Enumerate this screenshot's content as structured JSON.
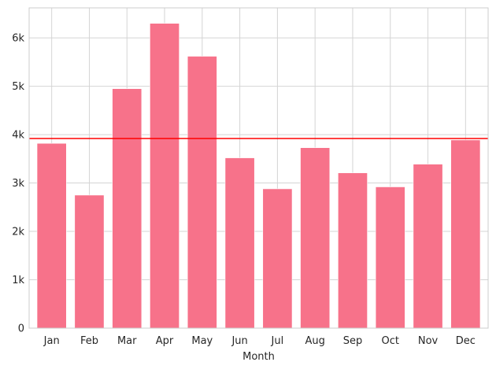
{
  "chart_data": {
    "type": "bar",
    "title": "",
    "xlabel": "Month",
    "ylabel": "",
    "categories": [
      "Jan",
      "Feb",
      "Mar",
      "Apr",
      "May",
      "Jun",
      "Jul",
      "Aug",
      "Sep",
      "Oct",
      "Nov",
      "Dec"
    ],
    "values": [
      3820,
      2750,
      4950,
      6300,
      5620,
      3520,
      2880,
      3730,
      3210,
      2920,
      3390,
      3890
    ],
    "ylim": [
      0,
      6620
    ],
    "yticks": [
      0,
      1000,
      2000,
      3000,
      4000,
      5000,
      6000
    ],
    "ytick_labels": [
      "0",
      "1k",
      "2k",
      "3k",
      "4k",
      "5k",
      "6k"
    ],
    "reference_line": {
      "value": 3920,
      "color": "#ff0000"
    },
    "bar_color": "#f7728a",
    "grid": true,
    "legend": "none"
  }
}
